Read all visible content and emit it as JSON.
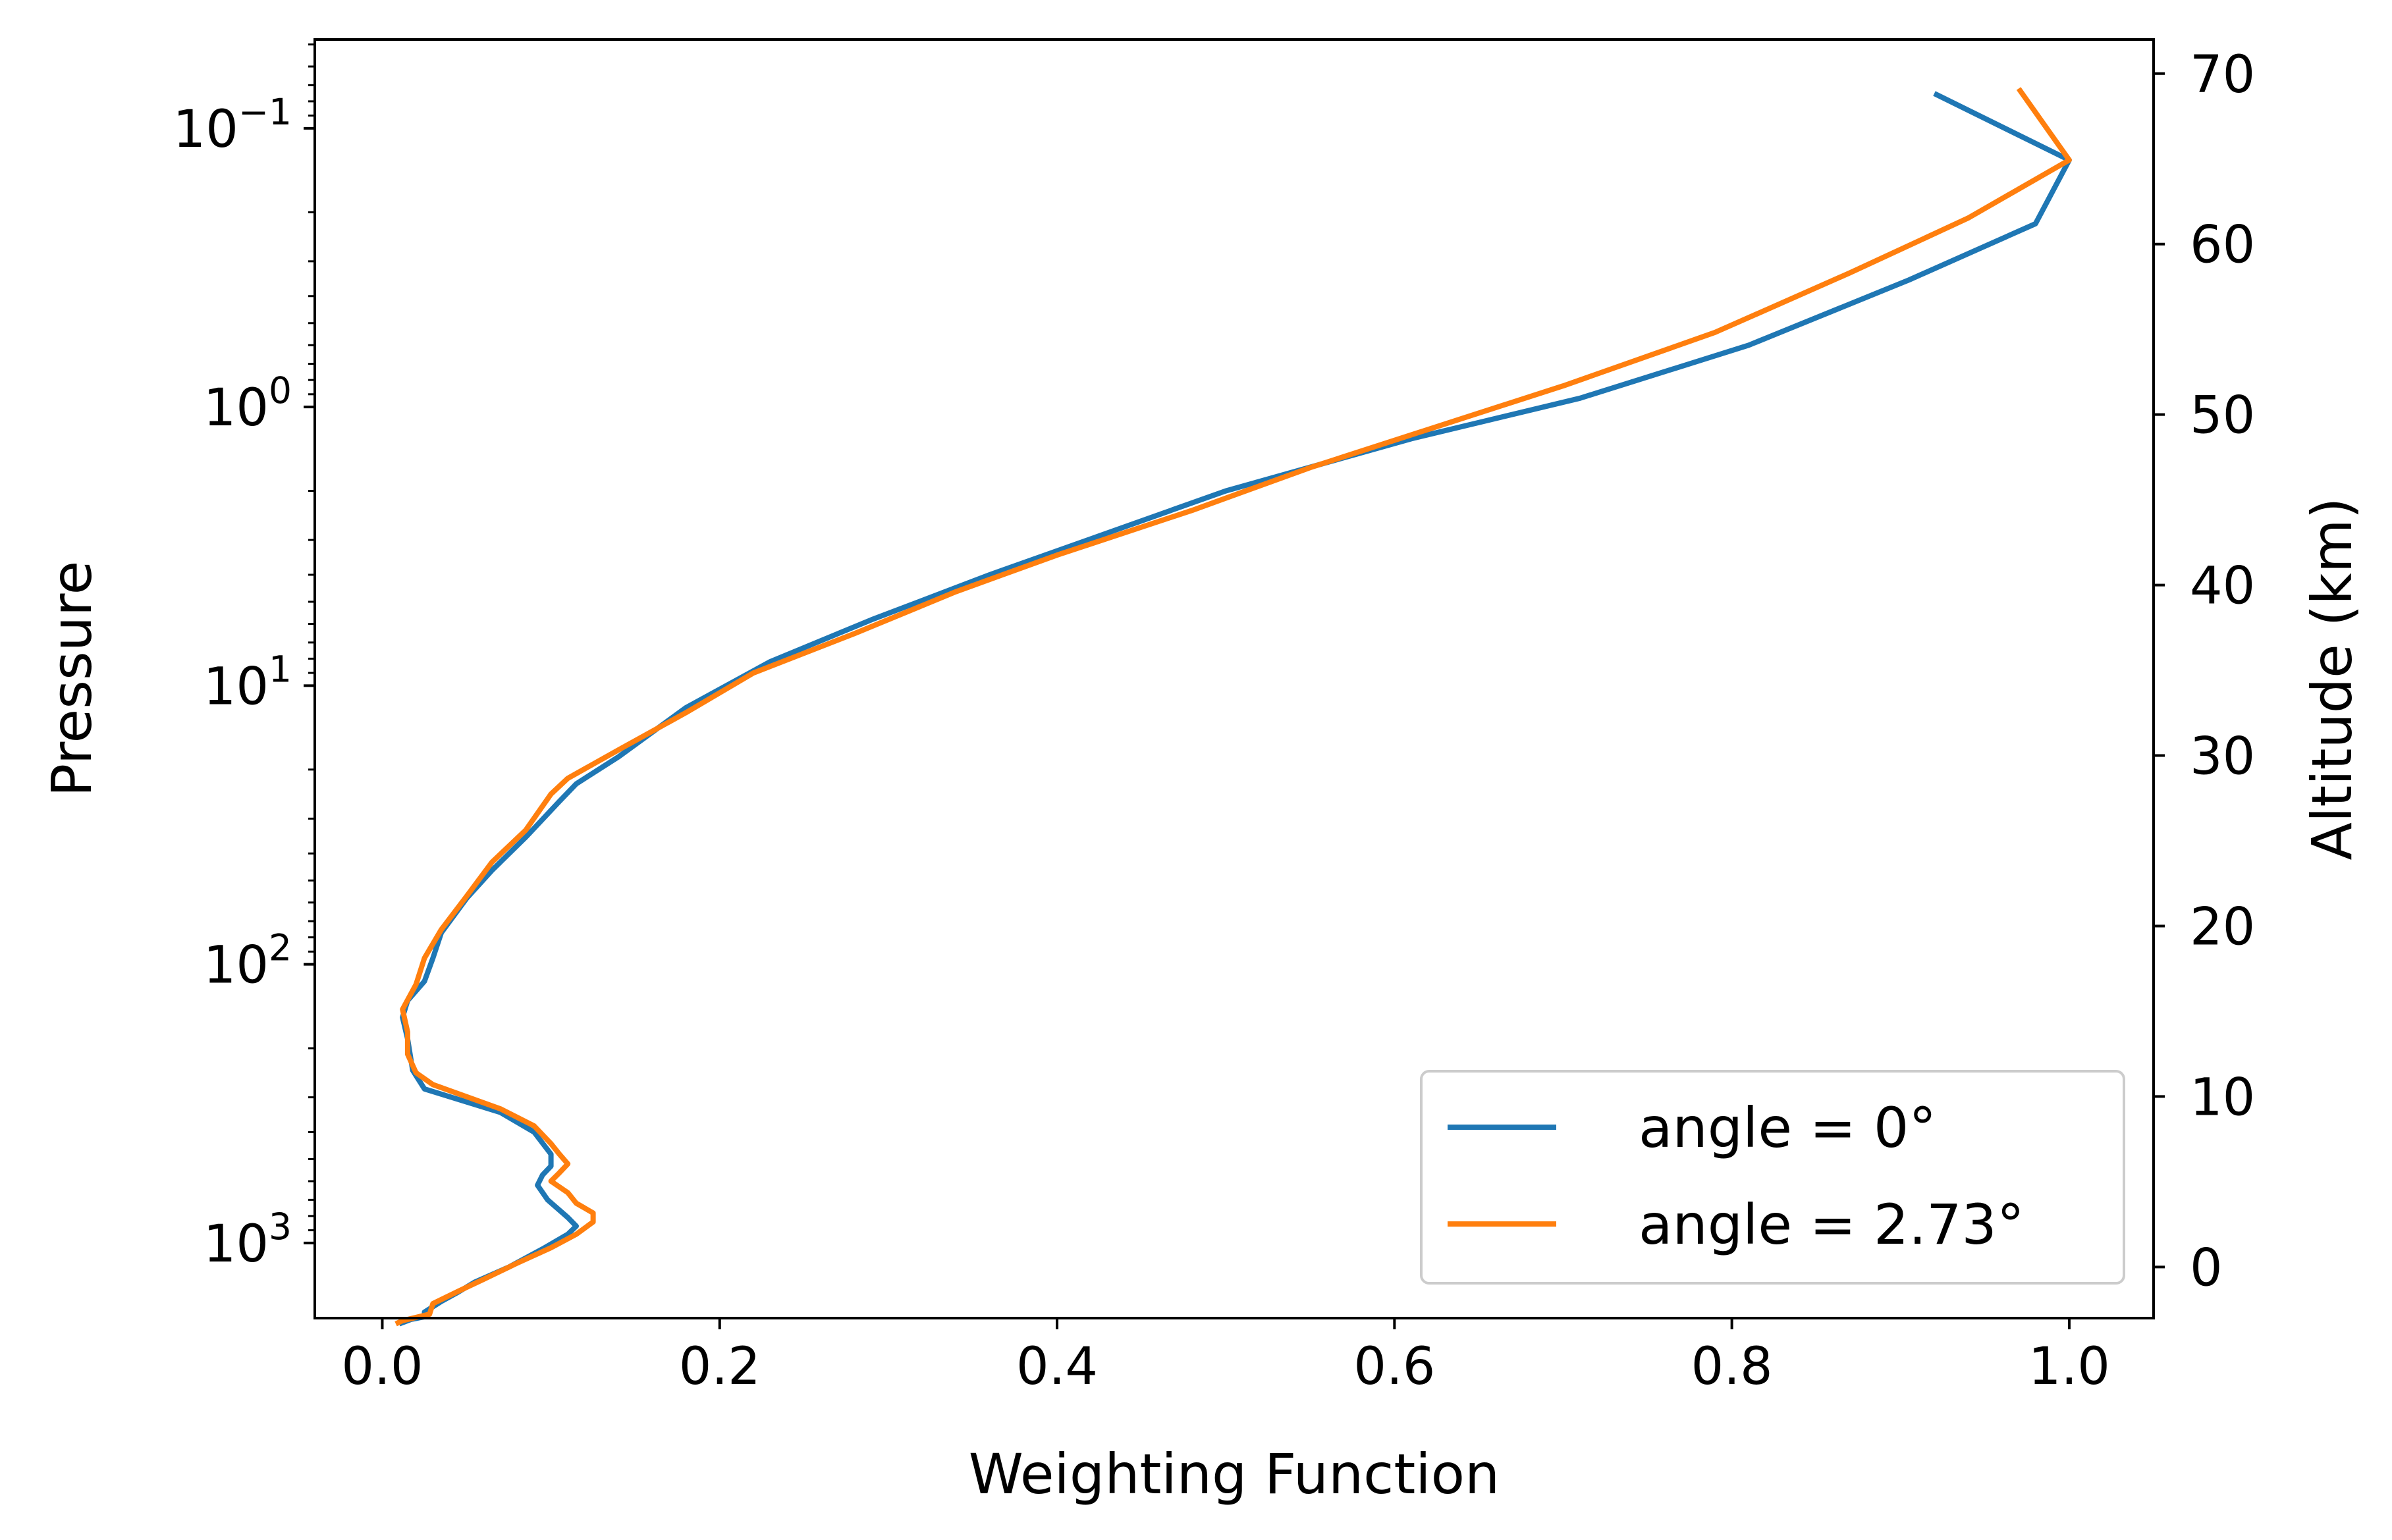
{
  "chart_data": {
    "type": "line",
    "xlabel": "Weighting Function",
    "ylabel": "Pressure",
    "y2label": "Altitude (km)",
    "xlim": [
      -0.04,
      1.05
    ],
    "xticks": [
      0.0,
      0.2,
      0.4,
      0.6,
      0.8,
      1.0
    ],
    "xtick_labels": [
      "0.0",
      "0.2",
      "0.4",
      "0.6",
      "0.8",
      "1.0"
    ],
    "yscale": "log",
    "yinverted": true,
    "ylim": [
      1860,
      0.048
    ],
    "yticks": [
      {
        "value": 0.1,
        "base": "10",
        "exp": "−1"
      },
      {
        "value": 1,
        "base": "10",
        "exp": "0"
      },
      {
        "value": 10,
        "base": "10",
        "exp": "1"
      },
      {
        "value": 100,
        "base": "10",
        "exp": "2"
      },
      {
        "value": 1000,
        "base": "10",
        "exp": "3"
      }
    ],
    "y2lim": [
      -3,
      72
    ],
    "y2ticks": [
      0,
      10,
      20,
      30,
      40,
      50,
      60,
      70
    ],
    "y2tick_labels": [
      "0",
      "10",
      "20",
      "30",
      "40",
      "50",
      "60",
      "70"
    ],
    "grid": false,
    "legend_position": "lower-right",
    "series": [
      {
        "name": "angle = 0°",
        "color": "#1f77b4",
        "points": [
          [
            0.92,
            0.075
          ],
          [
            1.0,
            0.13
          ],
          [
            0.98,
            0.22
          ],
          [
            0.905,
            0.35
          ],
          [
            0.81,
            0.6
          ],
          [
            0.71,
            0.93
          ],
          [
            0.61,
            1.3
          ],
          [
            0.5,
            2.0
          ],
          [
            0.425,
            2.9
          ],
          [
            0.36,
            4.0
          ],
          [
            0.29,
            5.8
          ],
          [
            0.23,
            8.2
          ],
          [
            0.18,
            12.0
          ],
          [
            0.14,
            18.0
          ],
          [
            0.115,
            22.5
          ],
          [
            0.105,
            26.0
          ],
          [
            0.085,
            35.0
          ],
          [
            0.065,
            46.0
          ],
          [
            0.05,
            58.0
          ],
          [
            0.035,
            77.0
          ],
          [
            0.03,
            95.0
          ],
          [
            0.025,
            115.0
          ],
          [
            0.015,
            135.0
          ],
          [
            0.012,
            155.0
          ],
          [
            0.015,
            185.0
          ],
          [
            0.018,
            240.0
          ],
          [
            0.025,
            280.0
          ],
          [
            0.07,
            340.0
          ],
          [
            0.09,
            400.0
          ],
          [
            0.1,
            480.0
          ],
          [
            0.1,
            530.0
          ],
          [
            0.095,
            570.0
          ],
          [
            0.092,
            620.0
          ],
          [
            0.098,
            700.0
          ],
          [
            0.11,
            810.0
          ],
          [
            0.115,
            870.0
          ],
          [
            0.11,
            930.0
          ],
          [
            0.095,
            1050.0
          ],
          [
            0.075,
            1220.0
          ],
          [
            0.055,
            1380.0
          ],
          [
            0.045,
            1500.0
          ],
          [
            0.035,
            1620.0
          ],
          [
            0.025,
            1770.0
          ],
          [
            0.025,
            1840.0
          ],
          [
            0.017,
            1880.0
          ],
          [
            0.01,
            1950.0
          ]
        ]
      },
      {
        "name": "angle = 2.73°",
        "color": "#ff7f0e",
        "points": [
          [
            0.97,
            0.072
          ],
          [
            1.0,
            0.13
          ],
          [
            0.94,
            0.21
          ],
          [
            0.87,
            0.33
          ],
          [
            0.79,
            0.54
          ],
          [
            0.7,
            0.84
          ],
          [
            0.63,
            1.15
          ],
          [
            0.55,
            1.65
          ],
          [
            0.48,
            2.35
          ],
          [
            0.4,
            3.4
          ],
          [
            0.34,
            4.6
          ],
          [
            0.28,
            6.5
          ],
          [
            0.22,
            9.0
          ],
          [
            0.18,
            12.5
          ],
          [
            0.14,
            17.0
          ],
          [
            0.11,
            21.5
          ],
          [
            0.1,
            24.5
          ],
          [
            0.085,
            33.0
          ],
          [
            0.065,
            43.0
          ],
          [
            0.05,
            57.0
          ],
          [
            0.035,
            75.0
          ],
          [
            0.025,
            95.0
          ],
          [
            0.02,
            118.0
          ],
          [
            0.012,
            145.0
          ],
          [
            0.015,
            175.0
          ],
          [
            0.015,
            210.0
          ],
          [
            0.02,
            245.0
          ],
          [
            0.03,
            270.0
          ],
          [
            0.07,
            330.0
          ],
          [
            0.09,
            380.0
          ],
          [
            0.1,
            440.0
          ],
          [
            0.105,
            480.0
          ],
          [
            0.11,
            520.0
          ],
          [
            0.105,
            560.0
          ],
          [
            0.1,
            600.0
          ],
          [
            0.11,
            660.0
          ],
          [
            0.115,
            720.0
          ],
          [
            0.125,
            780.0
          ],
          [
            0.125,
            840.0
          ],
          [
            0.115,
            930.0
          ],
          [
            0.1,
            1040.0
          ],
          [
            0.08,
            1180.0
          ],
          [
            0.06,
            1350.0
          ],
          [
            0.045,
            1490.0
          ],
          [
            0.03,
            1650.0
          ],
          [
            0.028,
            1800.0
          ],
          [
            0.012,
            1900.0
          ],
          [
            0.008,
            1950.0
          ]
        ]
      }
    ]
  }
}
